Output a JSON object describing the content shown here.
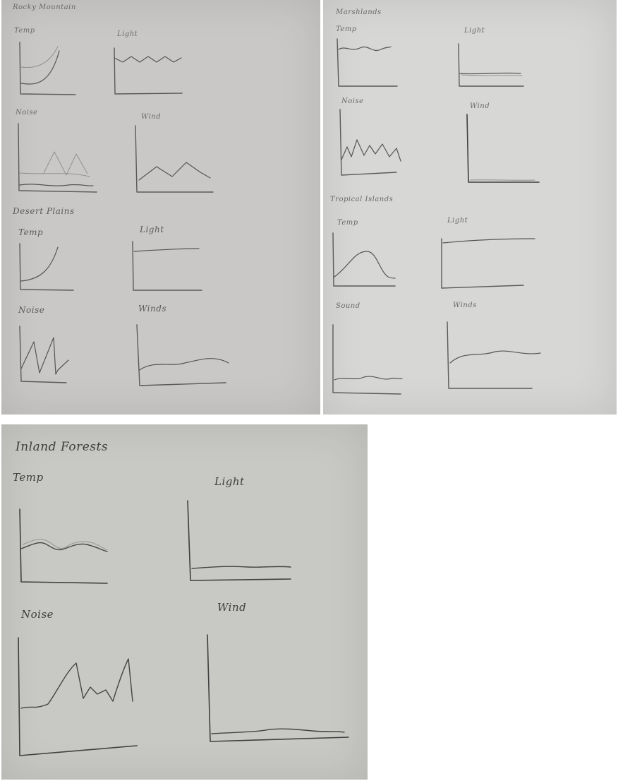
{
  "sheets": {
    "rocky": {
      "heading": "Rocky Mountain",
      "plots": {
        "temp": "Temp",
        "light": "Light",
        "noise": "Noise",
        "wind": "Wind"
      }
    },
    "desert": {
      "heading": "Desert Plains",
      "plots": {
        "temp": "Temp",
        "light": "Light",
        "noise": "Noise",
        "wind": "Winds"
      }
    },
    "marsh": {
      "heading": "Marshlands",
      "plots": {
        "temp": "Temp",
        "light": "Light",
        "noise": "Noise",
        "wind": "Wind"
      }
    },
    "tropical": {
      "heading": "Tropical Islands",
      "plots": {
        "temp": "Temp",
        "light": "Light",
        "sound": "Sound",
        "wind": "Winds"
      }
    },
    "forest": {
      "heading": "Inland Forests",
      "plots": {
        "temp": "Temp",
        "light": "Light",
        "noise": "Noise",
        "wind": "Wind"
      }
    }
  }
}
